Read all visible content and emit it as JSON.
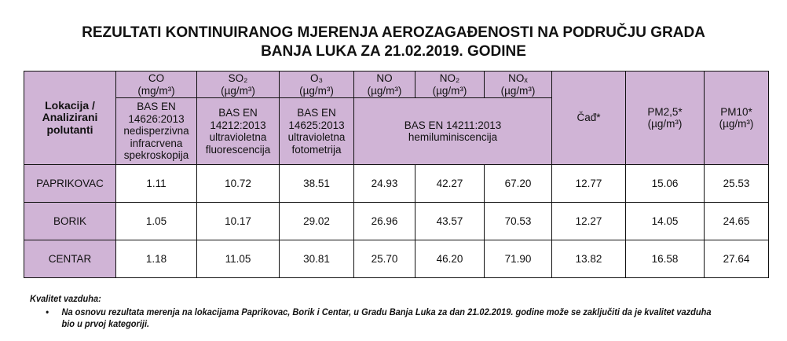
{
  "title": {
    "line1": "REZULTATI KONTINUIRANOG MJERENJA AEROZAGAĐENOSTI NA PODRUČJU GRADA",
    "line2": "BANJA LUKA ZA 21.02.2019. GODINE"
  },
  "table": {
    "corner_label": "Lokacija / Analizirani polutanti",
    "pollutants": [
      {
        "name": "CO",
        "unit": "(mg/m³)",
        "method": "BAS EN 14626:2013 nedisperzivna infracrvena spekroskopija"
      },
      {
        "name": "SO₂",
        "unit": "(µg/m³)",
        "method": "BAS EN 14212:2013 ultravioletna fluorescencija"
      },
      {
        "name": "O₃",
        "unit": "(µg/m³)",
        "method": "BAS EN 14625:2013 ultravioletna fotometrija"
      },
      {
        "name": "NO",
        "unit": "(µg/m³)"
      },
      {
        "name": "NO₂",
        "unit": "(µg/m³)"
      },
      {
        "name": "NOₓ",
        "unit": "(µg/m³)"
      }
    ],
    "nox_method": "BAS EN 14211:2013 hemiluminiscencija",
    "cad": "Čađ*",
    "pm25": {
      "name": "PM2,5*",
      "unit": "(µg/m³)"
    },
    "pm10": {
      "name": "PM10*",
      "unit": "(µg/m³)"
    },
    "rows": [
      {
        "location": "PAPRIKOVAC",
        "values": [
          "1.11",
          "10.72",
          "38.51",
          "24.93",
          "42.27",
          "67.20",
          "12.77",
          "15.06",
          "25.53"
        ]
      },
      {
        "location": "BORIK",
        "values": [
          "1.05",
          "10.17",
          "29.02",
          "26.96",
          "43.57",
          "70.53",
          "12.27",
          "14.05",
          "24.65"
        ]
      },
      {
        "location": "CENTAR",
        "values": [
          "1.18",
          "11.05",
          "30.81",
          "25.70",
          "46.20",
          "71.90",
          "13.82",
          "16.58",
          "27.64"
        ]
      }
    ],
    "header_color": "#d0b4d6"
  },
  "note": {
    "heading": "Kvalitet vazduha:",
    "bullet": "Na osnovu rezultata merenja na lokacijama Paprikovac, Borik i Centar, u Gradu Banja Luka za dan 21.02.2019. godine može se zaključiti da je kvalitet vazduha bio u prvoj kategoriji."
  }
}
